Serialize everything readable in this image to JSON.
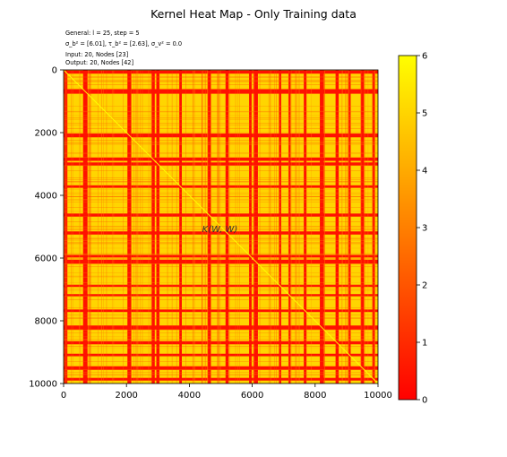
{
  "chart_data": {
    "type": "heatmap",
    "title": "Kernel Heat Map - Only Training data",
    "info_lines": [
      "General: l = 25, step = 5",
      "σ_b² = [6.01], τ_b² = [2.63], σ_v² = 0.0",
      "Input: 20, Nodes [23]",
      "Output: 20, Nodes [42]"
    ],
    "annotation": "K(W, W)",
    "xlim": [
      0,
      10000
    ],
    "ylim": [
      10000,
      0
    ],
    "xticks": [
      "0",
      "2000",
      "4000",
      "6000",
      "8000",
      "10000"
    ],
    "yticks": [
      "0",
      "2000",
      "4000",
      "6000",
      "8000",
      "10000"
    ],
    "colorbar": {
      "min": 0,
      "max": 6,
      "ticks": [
        "0",
        "1",
        "2",
        "3",
        "4",
        "5",
        "6"
      ],
      "colormap": "autumn",
      "low_color": "#ff0000",
      "high_color": "#ffff00"
    },
    "diagonal_value": 6,
    "high_value": 5,
    "low_value": 0.4,
    "low_bands": [
      [
        20,
        120
      ],
      [
        620,
        760
      ],
      [
        2030,
        2150
      ],
      [
        2800,
        2900
      ],
      [
        2950,
        3050
      ],
      [
        3680,
        3760
      ],
      [
        4580,
        4680
      ],
      [
        5150,
        5250
      ],
      [
        5900,
        5980
      ],
      [
        6050,
        6180
      ],
      [
        6850,
        6920
      ],
      [
        7150,
        7220
      ],
      [
        7640,
        7720
      ],
      [
        8150,
        8280
      ],
      [
        8650,
        8750
      ],
      [
        9050,
        9130
      ],
      [
        9450,
        9560
      ],
      [
        9820,
        9900
      ]
    ]
  }
}
